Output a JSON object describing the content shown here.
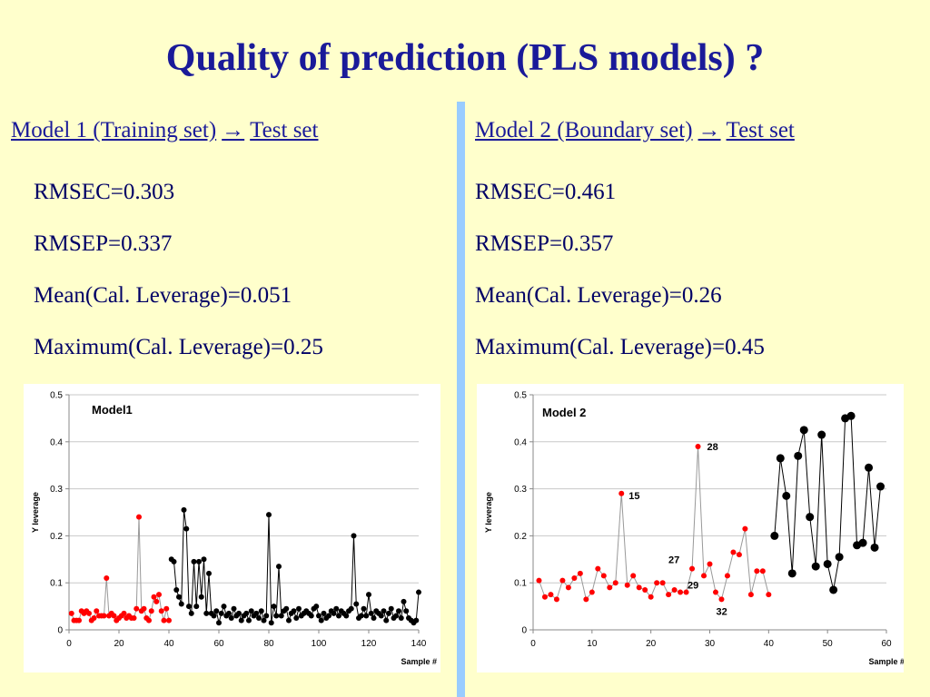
{
  "title": "Quality of prediction (PLS models) ?",
  "left": {
    "heading_model": "Model 1 (Training set)",
    "arrow": "→",
    "heading_target": "Test set",
    "stats": [
      "RMSEC=0.303",
      "RMSEP=0.337",
      "Mean(Cal. Leverage)=0.051",
      "Maximum(Cal. Leverage)=0.25"
    ]
  },
  "right": {
    "heading_model": "Model 2 (Boundary set)",
    "arrow": "→",
    "heading_target": "Test set",
    "stats": [
      "RMSEC=0.461",
      "RMSEP=0.357",
      "Mean(Cal. Leverage)=0.26",
      "Maximum(Cal. Leverage)=0.45"
    ]
  },
  "chart_data": [
    {
      "type": "line",
      "title": "Model1",
      "xlabel": "Sample #",
      "ylabel": "Y leverage",
      "xlim": [
        0,
        140
      ],
      "xticks": [
        0,
        20,
        40,
        60,
        80,
        100,
        120,
        140
      ],
      "ylim": [
        0,
        0.5
      ],
      "yticks": [
        0,
        0.1,
        0.2,
        0.3,
        0.4,
        0.5
      ],
      "grid": true,
      "series": [
        {
          "color": "#ff0000",
          "line_color": "#999999",
          "x": [
            1,
            2,
            3,
            4,
            5,
            6,
            7,
            8,
            9,
            10,
            11,
            12,
            13,
            14,
            15,
            16,
            17,
            18,
            19,
            20,
            21,
            22,
            23,
            24,
            25,
            26,
            27,
            28,
            29,
            30,
            31,
            32,
            33,
            34,
            35,
            36,
            37,
            38,
            39,
            40
          ],
          "values": [
            0.035,
            0.02,
            0.02,
            0.02,
            0.04,
            0.035,
            0.04,
            0.035,
            0.02,
            0.025,
            0.04,
            0.03,
            0.03,
            0.03,
            0.11,
            0.03,
            0.035,
            0.03,
            0.02,
            0.025,
            0.03,
            0.035,
            0.025,
            0.03,
            0.025,
            0.025,
            0.045,
            0.24,
            0.04,
            0.045,
            0.025,
            0.02,
            0.04,
            0.07,
            0.06,
            0.075,
            0.04,
            0.02,
            0.045,
            0.02
          ]
        },
        {
          "color": "#000000",
          "line_color": "#000000",
          "x": [
            41,
            42,
            43,
            44,
            45,
            46,
            47,
            48,
            49,
            50,
            51,
            52,
            53,
            54,
            55,
            56,
            57,
            58,
            59,
            60,
            61,
            62,
            63,
            64,
            65,
            66,
            67,
            68,
            69,
            70,
            71,
            72,
            73,
            74,
            75,
            76,
            77,
            78,
            79,
            80,
            81,
            82,
            83,
            84,
            85,
            86,
            87,
            88,
            89,
            90,
            91,
            92,
            93,
            94,
            95,
            96,
            97,
            98,
            99,
            100,
            101,
            102,
            103,
            104,
            105,
            106,
            107,
            108,
            109,
            110,
            111,
            112,
            113,
            114,
            115,
            116,
            117,
            118,
            119,
            120,
            121,
            122,
            123,
            124,
            125,
            126,
            127,
            128,
            129,
            130,
            131,
            132,
            133,
            134,
            135,
            136,
            137,
            138,
            139,
            140
          ],
          "values": [
            0.15,
            0.145,
            0.085,
            0.07,
            0.055,
            0.255,
            0.215,
            0.05,
            0.035,
            0.145,
            0.05,
            0.145,
            0.07,
            0.15,
            0.035,
            0.12,
            0.035,
            0.03,
            0.04,
            0.015,
            0.035,
            0.05,
            0.03,
            0.035,
            0.025,
            0.045,
            0.03,
            0.035,
            0.02,
            0.03,
            0.035,
            0.02,
            0.04,
            0.03,
            0.035,
            0.025,
            0.04,
            0.02,
            0.03,
            0.245,
            0.015,
            0.05,
            0.03,
            0.135,
            0.03,
            0.04,
            0.045,
            0.02,
            0.035,
            0.04,
            0.025,
            0.045,
            0.03,
            0.035,
            0.04,
            0.035,
            0.03,
            0.045,
            0.05,
            0.03,
            0.02,
            0.035,
            0.025,
            0.03,
            0.04,
            0.035,
            0.045,
            0.03,
            0.04,
            0.035,
            0.03,
            0.04,
            0.045,
            0.2,
            0.055,
            0.025,
            0.03,
            0.045,
            0.03,
            0.075,
            0.035,
            0.025,
            0.04,
            0.035,
            0.03,
            0.04,
            0.02,
            0.035,
            0.045,
            0.025,
            0.03,
            0.04,
            0.025,
            0.06,
            0.04,
            0.025,
            0.02,
            0.015,
            0.02,
            0.08
          ]
        }
      ]
    },
    {
      "type": "line",
      "title": "Model 2",
      "xlabel": "Sample #",
      "ylabel": "Y leverage",
      "xlim": [
        0,
        60
      ],
      "xticks": [
        0,
        10,
        20,
        30,
        40,
        50,
        60
      ],
      "ylim": [
        0,
        0.5
      ],
      "yticks": [
        0,
        0.1,
        0.2,
        0.3,
        0.4,
        0.5
      ],
      "grid": true,
      "point_labels": [
        15,
        28,
        27,
        29,
        32
      ],
      "series": [
        {
          "color": "#ff0000",
          "line_color": "#999999",
          "x": [
            1,
            2,
            3,
            4,
            5,
            6,
            7,
            8,
            9,
            10,
            11,
            12,
            13,
            14,
            15,
            16,
            17,
            18,
            19,
            20,
            21,
            22,
            23,
            24,
            25,
            26,
            27,
            28,
            29,
            30,
            31,
            32,
            33,
            34,
            35,
            36,
            37,
            38,
            39,
            40
          ],
          "values": [
            0.105,
            0.07,
            0.075,
            0.065,
            0.105,
            0.09,
            0.11,
            0.12,
            0.065,
            0.08,
            0.13,
            0.115,
            0.09,
            0.1,
            0.29,
            0.095,
            0.115,
            0.09,
            0.085,
            0.07,
            0.1,
            0.1,
            0.075,
            0.085,
            0.08,
            0.08,
            0.13,
            0.39,
            0.115,
            0.14,
            0.08,
            0.065,
            0.115,
            0.165,
            0.16,
            0.215,
            0.075,
            0.125,
            0.125,
            0.075
          ]
        },
        {
          "color": "#000000",
          "line_color": "#000000",
          "x": [
            41,
            42,
            43,
            44,
            45,
            46,
            47,
            48,
            49,
            50,
            51,
            52,
            53,
            54,
            55,
            56,
            57,
            58,
            59
          ],
          "values": [
            0.2,
            0.365,
            0.285,
            0.12,
            0.37,
            0.425,
            0.24,
            0.135,
            0.415,
            0.14,
            0.085,
            0.155,
            0.45,
            0.455,
            0.18,
            0.185,
            0.345,
            0.175,
            0.305
          ]
        }
      ]
    }
  ]
}
